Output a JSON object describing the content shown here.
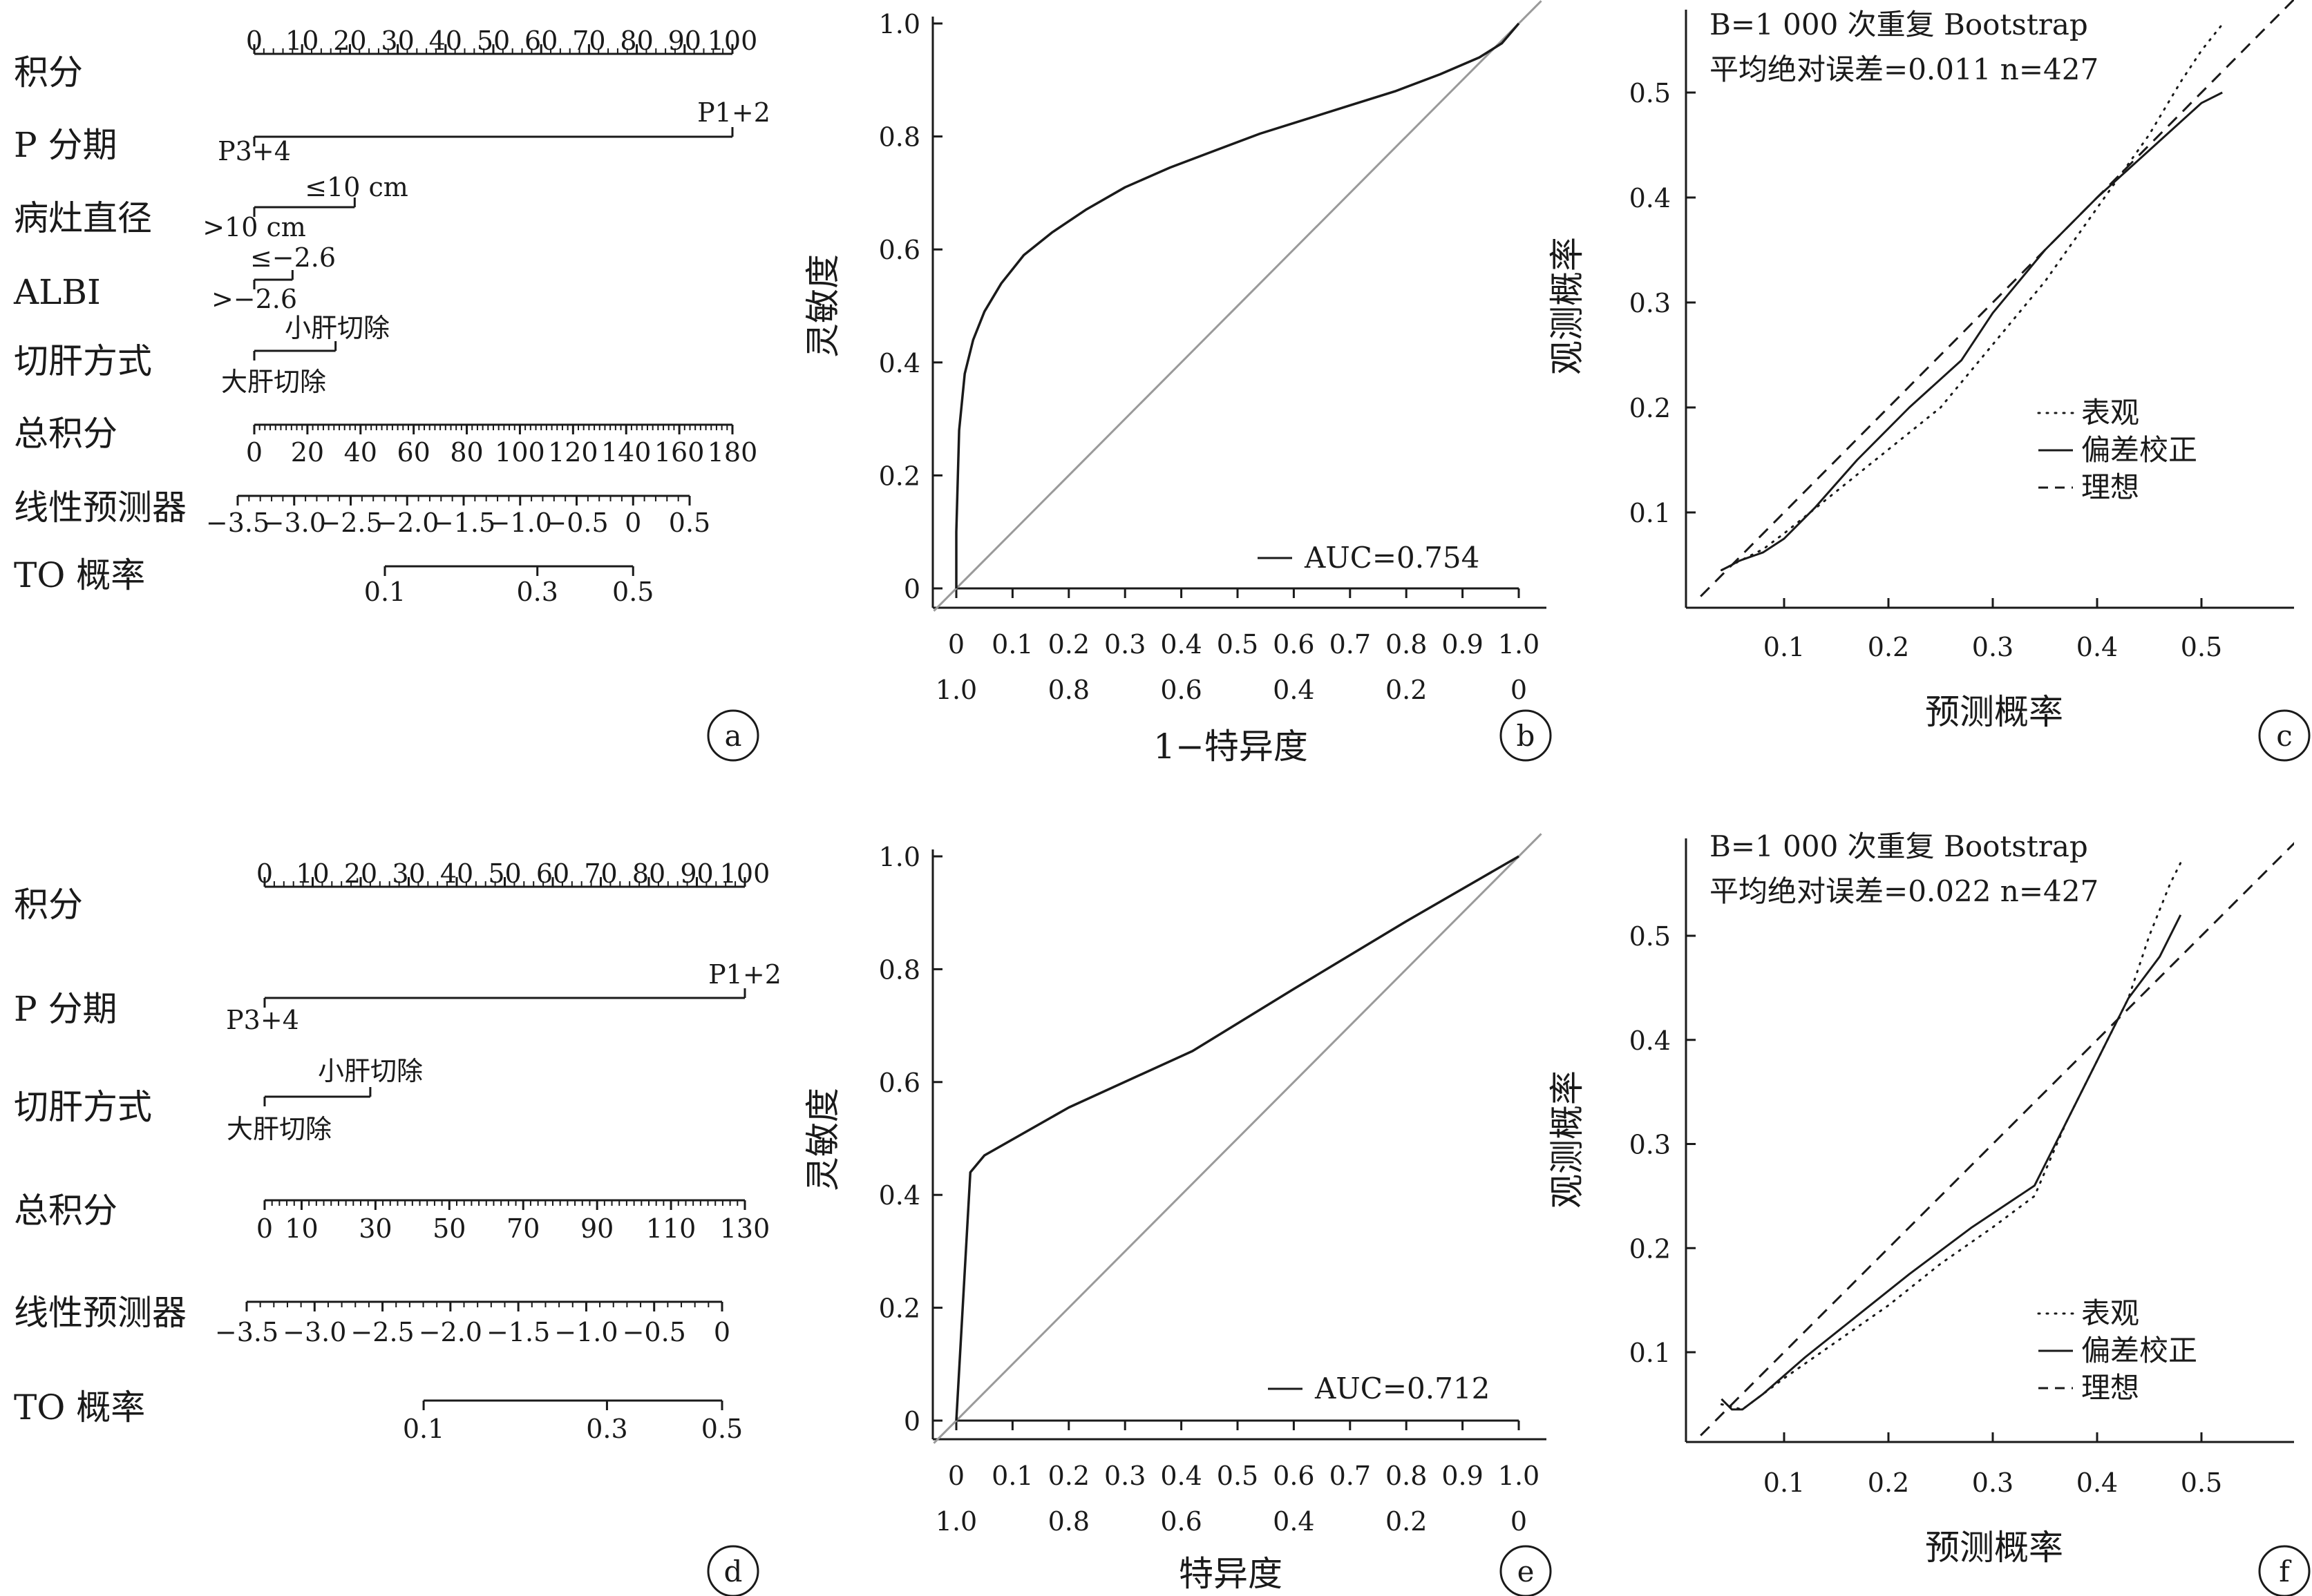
{
  "figure": {
    "panel_letters": [
      "a",
      "b",
      "c",
      "d",
      "e",
      "f"
    ]
  },
  "chart_data": [
    {
      "type": "nomogram",
      "panel": "a",
      "rows": [
        {
          "label": "积分",
          "kind": "scale",
          "ticks": [
            "0",
            "10",
            "20",
            "30",
            "40",
            "50",
            "60",
            "70",
            "80",
            "90",
            "100"
          ],
          "range": [
            0,
            100
          ]
        },
        {
          "label": "P 分期",
          "kind": "factor",
          "levels": [
            {
              "text": "P1+2",
              "points": 100
            },
            {
              "text": "P3+4",
              "points": 0
            }
          ]
        },
        {
          "label": "病灶直径",
          "kind": "factor",
          "levels": [
            {
              "text": "≤10 cm",
              "points": 21
            },
            {
              "text": ">10 cm",
              "points": 0
            }
          ]
        },
        {
          "label": "ALBI",
          "kind": "factor",
          "levels": [
            {
              "text": "≤−2.6",
              "points": 8
            },
            {
              "text": ">−2.6",
              "points": 0
            }
          ]
        },
        {
          "label": "切肝方式",
          "kind": "factor",
          "levels": [
            {
              "text": "小肝切除",
              "points": 17
            },
            {
              "text": "大肝切除",
              "points": 0
            }
          ]
        },
        {
          "label": "总积分",
          "kind": "scale",
          "ticks": [
            "0",
            "20",
            "40",
            "60",
            "80",
            "100",
            "120",
            "140",
            "160",
            "180"
          ],
          "range": [
            0,
            180
          ]
        },
        {
          "label": "线性预测器",
          "kind": "scale",
          "ticks": [
            "−3.5",
            "−3.0",
            "−2.5",
            "−2.0",
            "−1.5",
            "−1.0",
            "−0.5",
            "0",
            "0.5"
          ],
          "range": [
            -3.5,
            0.5
          ]
        },
        {
          "label": "TO 概率",
          "kind": "prob",
          "ticks": [
            "0.1",
            "0.3",
            "0.5"
          ],
          "values": [
            0.1,
            0.3,
            0.5
          ]
        }
      ]
    },
    {
      "type": "line",
      "panel": "b",
      "xlabel": "1−特异度",
      "ylabel": "灵敏度",
      "x_ticks_top": [
        "0",
        "0.1",
        "0.2",
        "0.3",
        "0.4",
        "0.5",
        "0.6",
        "0.7",
        "0.8",
        "0.9",
        "1.0"
      ],
      "x_ticks_bottom": [
        "1.0",
        "0.8",
        "0.6",
        "0.4",
        "0.2",
        "0"
      ],
      "y_ticks": [
        "0",
        "0.2",
        "0.4",
        "0.6",
        "0.8",
        "1.0"
      ],
      "xlim": [
        0,
        1
      ],
      "ylim": [
        0,
        1
      ],
      "legend": "AUC=0.754",
      "series": [
        {
          "name": "AUC=0.754",
          "style": "solid",
          "x": [
            0,
            0,
            0.005,
            0.015,
            0.03,
            0.05,
            0.08,
            0.12,
            0.17,
            0.23,
            0.3,
            0.38,
            0.46,
            0.54,
            0.62,
            0.7,
            0.78,
            0.86,
            0.93,
            0.97,
            1.0
          ],
          "y": [
            0,
            0.1,
            0.28,
            0.38,
            0.44,
            0.49,
            0.54,
            0.59,
            0.63,
            0.67,
            0.71,
            0.745,
            0.775,
            0.805,
            0.83,
            0.855,
            0.88,
            0.91,
            0.94,
            0.965,
            1.0
          ]
        },
        {
          "name": "",
          "style": "reference",
          "x": [
            0,
            1
          ],
          "y": [
            0,
            1
          ]
        }
      ]
    },
    {
      "type": "line",
      "panel": "c",
      "xlabel": "预测概率",
      "ylabel": "观测概率",
      "annotation_line1": "B=1 000 次重复 Bootstrap",
      "annotation_line2": "平均绝对误差=0.011 n=427",
      "x_ticks": [
        "0.1",
        "0.2",
        "0.3",
        "0.4",
        "0.5"
      ],
      "y_ticks": [
        "0.1",
        "0.2",
        "0.3",
        "0.4",
        "0.5"
      ],
      "xlim": [
        0.02,
        0.6
      ],
      "ylim": [
        0.02,
        0.57
      ],
      "legend_entries": [
        "表观",
        "偏差校正",
        "理想"
      ],
      "series": [
        {
          "name": "表观",
          "style": "dotted",
          "x": [
            0.04,
            0.05,
            0.06,
            0.08,
            0.1,
            0.15,
            0.2,
            0.25,
            0.3,
            0.35,
            0.4,
            0.45,
            0.48,
            0.5,
            0.52
          ],
          "y": [
            0.045,
            0.05,
            0.055,
            0.065,
            0.08,
            0.12,
            0.16,
            0.2,
            0.26,
            0.32,
            0.39,
            0.46,
            0.51,
            0.54,
            0.565
          ]
        },
        {
          "name": "偏差校正",
          "style": "solid",
          "x": [
            0.04,
            0.05,
            0.055,
            0.06,
            0.08,
            0.1,
            0.13,
            0.17,
            0.22,
            0.27,
            0.3,
            0.35,
            0.4,
            0.45,
            0.5,
            0.52
          ],
          "y": [
            0.045,
            0.05,
            0.053,
            0.055,
            0.062,
            0.075,
            0.105,
            0.15,
            0.2,
            0.245,
            0.29,
            0.35,
            0.4,
            0.445,
            0.49,
            0.5
          ]
        },
        {
          "name": "理想",
          "style": "dashed",
          "x": [
            0.02,
            0.6
          ],
          "y": [
            0.02,
            0.6
          ]
        }
      ]
    },
    {
      "type": "nomogram",
      "panel": "d",
      "rows": [
        {
          "label": "积分",
          "kind": "scale",
          "ticks": [
            "0",
            "10",
            "20",
            "30",
            "40",
            "50",
            "60",
            "70",
            "80",
            "90",
            "100"
          ],
          "range": [
            0,
            100
          ]
        },
        {
          "label": "P 分期",
          "kind": "factor",
          "levels": [
            {
              "text": "P1+2",
              "points": 100
            },
            {
              "text": "P3+4",
              "points": 0
            }
          ]
        },
        {
          "label": "切肝方式",
          "kind": "factor",
          "levels": [
            {
              "text": "小肝切除",
              "points": 22
            },
            {
              "text": "大肝切除",
              "points": 0
            }
          ]
        },
        {
          "label": "总积分",
          "kind": "scale",
          "ticks": [
            "0",
            "10",
            "30",
            "50",
            "70",
            "90",
            "110",
            "130"
          ],
          "values": [
            0,
            10,
            30,
            50,
            70,
            90,
            110,
            130
          ],
          "range": [
            0,
            130
          ]
        },
        {
          "label": "线性预测器",
          "kind": "scale",
          "ticks": [
            "−3.5",
            "−3.0",
            "−2.5",
            "−2.0",
            "−1.5",
            "−1.0",
            "−0.5",
            "0"
          ],
          "range": [
            -3.5,
            0
          ]
        },
        {
          "label": "TO 概率",
          "kind": "prob",
          "ticks": [
            "0.1",
            "0.3",
            "0.5"
          ],
          "values": [
            0.1,
            0.3,
            0.5
          ]
        }
      ]
    },
    {
      "type": "line",
      "panel": "e",
      "xlabel": "特异度",
      "ylabel": "灵敏度",
      "x_ticks_top": [
        "0",
        "0.1",
        "0.2",
        "0.3",
        "0.4",
        "0.5",
        "0.6",
        "0.7",
        "0.8",
        "0.9",
        "1.0"
      ],
      "x_ticks_bottom": [
        "1.0",
        "0.8",
        "0.6",
        "0.4",
        "0.2",
        "0"
      ],
      "y_ticks": [
        "0",
        "0.2",
        "0.4",
        "0.6",
        "0.8",
        "1.0"
      ],
      "xlim": [
        0,
        1
      ],
      "ylim": [
        0,
        1
      ],
      "legend": "AUC=0.712",
      "series": [
        {
          "name": "AUC=0.712",
          "style": "solid",
          "x": [
            0,
            0.025,
            0.05,
            0.2,
            0.42,
            0.6,
            0.8,
            1.0
          ],
          "y": [
            0,
            0.44,
            0.47,
            0.555,
            0.655,
            0.765,
            0.885,
            1.0
          ]
        },
        {
          "name": "",
          "style": "reference",
          "x": [
            0,
            1
          ],
          "y": [
            0,
            1
          ]
        }
      ]
    },
    {
      "type": "line",
      "panel": "f",
      "xlabel": "预测概率",
      "ylabel": "观测概率",
      "annotation_line1": "B=1 000 次重复 Bootstrap",
      "annotation_line2": "平均绝对误差=0.022 n=427",
      "x_ticks": [
        "0.1",
        "0.2",
        "0.3",
        "0.4",
        "0.5"
      ],
      "y_ticks": [
        "0.1",
        "0.2",
        "0.3",
        "0.4",
        "0.5"
      ],
      "xlim": [
        0.02,
        0.6
      ],
      "ylim": [
        0.02,
        0.57
      ],
      "legend_entries": [
        "表观",
        "偏差校正",
        "理想"
      ],
      "series": [
        {
          "name": "表观",
          "style": "dotted",
          "x": [
            0.04,
            0.06,
            0.1,
            0.15,
            0.2,
            0.25,
            0.3,
            0.34,
            0.37,
            0.4,
            0.43,
            0.45,
            0.47,
            0.48
          ],
          "y": [
            0.05,
            0.045,
            0.075,
            0.11,
            0.145,
            0.185,
            0.22,
            0.25,
            0.32,
            0.38,
            0.44,
            0.5,
            0.55,
            0.57
          ]
        },
        {
          "name": "偏差校正",
          "style": "solid",
          "x": [
            0.04,
            0.05,
            0.06,
            0.08,
            0.12,
            0.17,
            0.22,
            0.28,
            0.34,
            0.36,
            0.4,
            0.43,
            0.46,
            0.48
          ],
          "y": [
            0.055,
            0.045,
            0.045,
            0.06,
            0.095,
            0.135,
            0.175,
            0.22,
            0.26,
            0.3,
            0.38,
            0.44,
            0.48,
            0.52
          ]
        },
        {
          "name": "理想",
          "style": "dashed",
          "x": [
            0.02,
            0.6
          ],
          "y": [
            0.02,
            0.6
          ]
        }
      ]
    }
  ]
}
